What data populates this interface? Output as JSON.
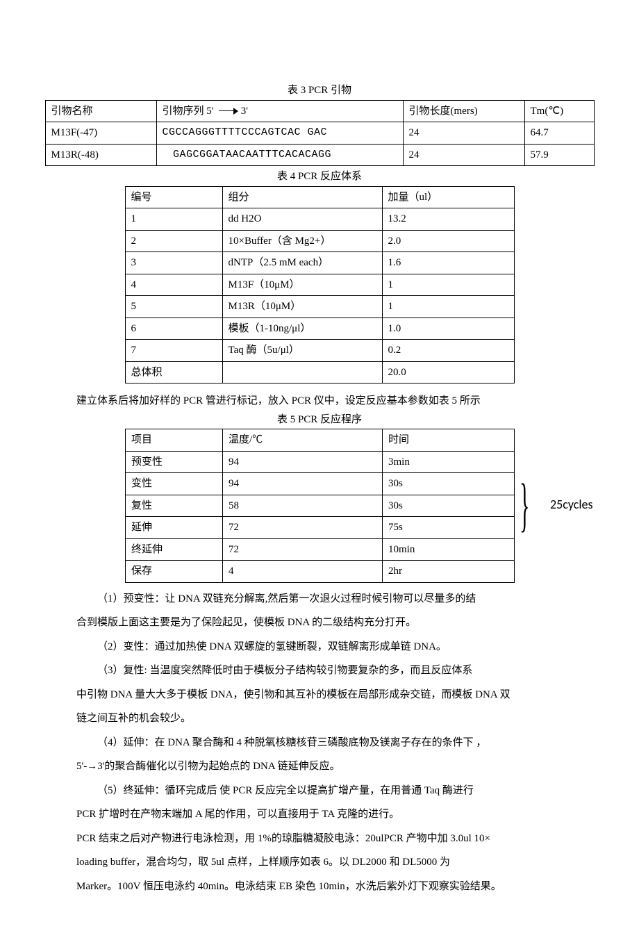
{
  "table3": {
    "title": "表 3 PCR 引物",
    "headers": [
      "引物名称",
      "引物序列 5'　　　3'",
      "引物长度(mers)",
      "Tm(℃)"
    ],
    "rows": [
      [
        "M13F(-47)",
        "CGCCAGGGTTTTCCCAGTCAC GAC",
        "24",
        "64.7"
      ],
      [
        "M13R(-48)",
        "　GAGCGGATAACAATTTCACACAGG",
        "24",
        "57.9"
      ]
    ]
  },
  "table4": {
    "title": "表 4 PCR 反应体系",
    "headers": [
      "编号",
      "组分",
      "加量（ul）"
    ],
    "rows": [
      [
        "1",
        "dd H2O",
        "13.2"
      ],
      [
        "2",
        "10×Buffer（含 Mg2+）",
        "2.0"
      ],
      [
        "3",
        "dNTP（2.5 mM each）",
        "1.6"
      ],
      [
        "4",
        "M13F（10μM）",
        "1"
      ],
      [
        "5",
        "M13R（10μM）",
        "1"
      ],
      [
        "6",
        "模板（1-10ng/μl）",
        "1.0"
      ],
      [
        "7",
        "Taq 酶（5u/μl）",
        "0.2"
      ],
      [
        "总体积",
        "",
        "20.0"
      ]
    ]
  },
  "intro5": "建立体系后将加好样的 PCR 管进行标记，放入 PCR 仪中，设定反应基本参数如表 5 所示",
  "table5": {
    "title": "表 5 PCR 反应程序",
    "headers": [
      "项目",
      "温度/℃",
      "时间"
    ],
    "rows": [
      [
        "预变性",
        "94",
        "3min"
      ],
      [
        "变性",
        "94",
        "30s"
      ],
      [
        "复性",
        "58",
        "30s"
      ],
      [
        "延伸",
        "72",
        "75s"
      ],
      [
        "终延伸",
        "72",
        "10min"
      ],
      [
        "保存",
        "4",
        "2hr"
      ]
    ],
    "cycles_label": "25cycles"
  },
  "paragraphs": [
    {
      "cls": "p-indent",
      "text": "（1）预变性：让 DNA 双链充分解离,然后第一次退火过程时候引物可以尽量多的结"
    },
    {
      "cls": "p-flush",
      "text": "合到模版上面这主要是为了保险起见，使模板 DNA 的二级结构充分打开。"
    },
    {
      "cls": "p-indent",
      "text": "（2）变性：通过加热使 DNA 双螺旋的氢键断裂，双链解离形成单链 DNA。"
    },
    {
      "cls": "p-indent",
      "text": "（3）复性: 当温度突然降低时由于模板分子结构较引物要复杂的多，而且反应体系"
    },
    {
      "cls": "p-flush",
      "text": "中引物 DNA 量大大多于模板 DNA，使引物和其互补的模板在局部形成杂交链，而模板 DNA 双"
    },
    {
      "cls": "p-flush",
      "text": "链之间互补的机会较少。"
    },
    {
      "cls": "p-indent",
      "text": "（4）延伸：在 DNA 聚合酶和 4 种脱氧核糖核苷三磷酸底物及镁离子存在的条件下 ，"
    },
    {
      "cls": "p-flush",
      "text": "5'-→3'的聚合酶催化以引物为起始点的 DNA 链延伸反应。"
    },
    {
      "cls": "p-indent",
      "text": "（5）终延伸：循环完成后 使 PCR 反应完全以提高扩增产量，在用普通 Taq 酶进行"
    },
    {
      "cls": "p-flush",
      "text": "PCR 扩增时在产物末端加 A 尾的作用，可以直接用于 TA 克隆的进行。"
    },
    {
      "cls": "p-flush",
      "text": "PCR 结束之后对产物进行电泳检测，用 1%的琼脂糖凝胶电泳：20ulPCR 产物中加 3.0ul 10×"
    },
    {
      "cls": "p-flush",
      "text": "loading buffer，混合均匀，取 5ul 点样，上样顺序如表 6。以 DL2000 和 DL5000 为"
    },
    {
      "cls": "p-flush",
      "text": "Marker。100V 恒压电泳约 40min。电泳结束 EB 染色 10min，水洗后紫外灯下观察实验结果。"
    }
  ]
}
